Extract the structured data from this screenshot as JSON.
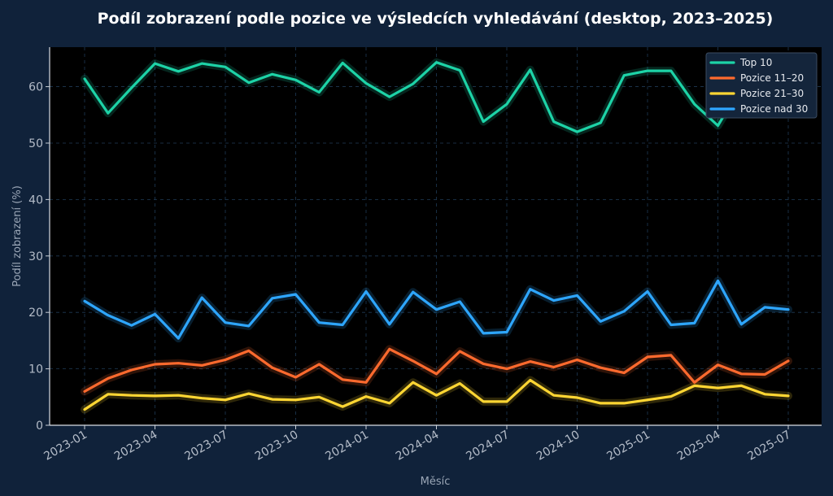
{
  "chart_data": {
    "type": "line",
    "title": "Podíl zobrazení podle pozice ve výsledcích vyhledávání (desktop, 2023–2025)",
    "xlabel": "Měsíc",
    "ylabel": "Podíl zobrazení (%)",
    "ylim": [
      0,
      67
    ],
    "yticks": [
      0,
      10,
      20,
      30,
      40,
      50,
      60
    ],
    "grid": true,
    "legend_position": "top-right",
    "x": [
      "2023-01",
      "2023-02",
      "2023-03",
      "2023-04",
      "2023-05",
      "2023-06",
      "2023-07",
      "2023-08",
      "2023-09",
      "2023-10",
      "2023-11",
      "2023-12",
      "2024-01",
      "2024-02",
      "2024-03",
      "2024-04",
      "2024-05",
      "2024-06",
      "2024-07",
      "2024-08",
      "2024-09",
      "2024-10",
      "2024-11",
      "2024-12",
      "2025-01",
      "2025-02",
      "2025-03",
      "2025-04",
      "2025-05",
      "2025-06",
      "2025-07"
    ],
    "xtick_labels": [
      "2023-01",
      "2023-04",
      "2023-07",
      "2023-10",
      "2024-01",
      "2024-04",
      "2024-07",
      "2024-10",
      "2025-01",
      "2025-04",
      "2025-07"
    ],
    "series": [
      {
        "name": "Top 10",
        "color": "#1dd3a7",
        "values": [
          61.4,
          55.3,
          59.8,
          64.1,
          62.7,
          64.1,
          63.5,
          60.7,
          62.2,
          61.2,
          59.0,
          64.2,
          60.6,
          58.2,
          60.5,
          64.3,
          62.9,
          53.8,
          56.9,
          63.0,
          53.8,
          52.0,
          53.6,
          62.0,
          62.8,
          62.8,
          56.9,
          53.1,
          60.0,
          62.5,
          60.9
        ]
      },
      {
        "name": "Pozice 11–20",
        "color": "#ff6a2e",
        "values": [
          6.0,
          8.3,
          9.8,
          10.8,
          11.0,
          10.6,
          11.6,
          13.2,
          10.2,
          8.5,
          10.8,
          8.1,
          7.6,
          13.5,
          11.4,
          9.1,
          13.1,
          10.9,
          10.0,
          11.3,
          10.3,
          11.6,
          10.2,
          9.3,
          12.1,
          12.4,
          7.6,
          10.7,
          9.1,
          9.0,
          11.4
        ]
      },
      {
        "name": "Pozice 21–30",
        "color": "#ffd633",
        "values": [
          2.8,
          5.5,
          5.3,
          5.2,
          5.3,
          4.8,
          4.5,
          5.6,
          4.6,
          4.5,
          5.0,
          3.3,
          5.1,
          3.9,
          7.6,
          5.3,
          7.4,
          4.2,
          4.2,
          8.0,
          5.3,
          4.9,
          3.9,
          3.9,
          4.5,
          5.1,
          7.0,
          6.6,
          7.0,
          5.5,
          5.2
        ]
      },
      {
        "name": "Pozice nad 30",
        "color": "#2ea6ff",
        "values": [
          22.0,
          19.5,
          17.7,
          19.7,
          15.4,
          22.6,
          18.2,
          17.6,
          22.5,
          23.2,
          18.2,
          17.8,
          23.7,
          17.9,
          23.6,
          20.5,
          21.9,
          16.3,
          16.5,
          24.1,
          22.1,
          23.0,
          18.4,
          20.2,
          23.7,
          17.8,
          18.1,
          25.6,
          17.9,
          20.9,
          20.5
        ]
      }
    ]
  }
}
